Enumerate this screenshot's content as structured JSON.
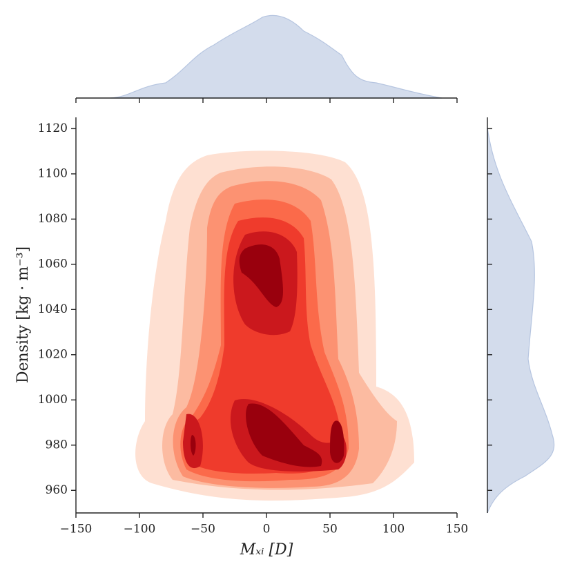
{
  "chart_data": {
    "type": "kde-joint",
    "x_label": "Mₓᵢ [D]",
    "y_label": "Density [kg · m⁻³]",
    "xlim": [
      -150,
      150
    ],
    "xticks": [
      {
        "value": -150,
        "label": "−150"
      },
      {
        "value": -100,
        "label": "−100"
      },
      {
        "value": -50,
        "label": "−50"
      },
      0,
      50,
      100,
      150
    ],
    "ylim": [
      950,
      1125
    ],
    "yticks": [
      960,
      980,
      1000,
      1020,
      1040,
      1060,
      1080,
      1100,
      1120
    ],
    "contour_colors": [
      "#fee0d2",
      "#fcbba1",
      "#fc9272",
      "#fb6a4a",
      "#ef3b2c",
      "#cb181d",
      "#99000d"
    ],
    "marginal_color": "#b6c5e0"
  }
}
